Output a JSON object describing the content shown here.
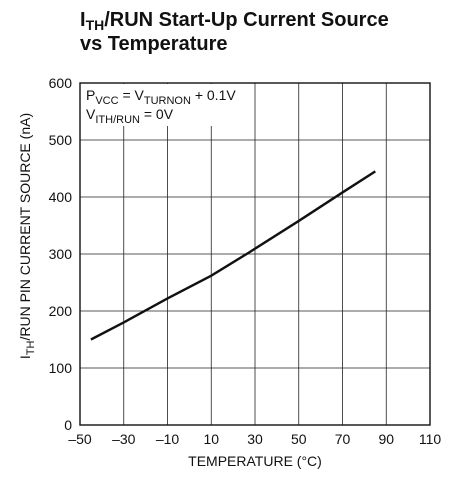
{
  "chart_data": {
    "type": "line",
    "title_lines": [
      [
        {
          "text": "I"
        },
        {
          "text": "TH",
          "sub": true
        },
        {
          "text": "/RUN Start-Up Current Source"
        }
      ],
      [
        {
          "text": "vs Temperature"
        }
      ]
    ],
    "annotation_lines": [
      [
        {
          "text": "P"
        },
        {
          "text": "VCC",
          "sub": true
        },
        {
          "text": " = V"
        },
        {
          "text": "TURNON",
          "sub": true
        },
        {
          "text": " + 0.1V"
        }
      ],
      [
        {
          "text": "V"
        },
        {
          "text": "ITH/RUN",
          "sub": true
        },
        {
          "text": " = 0V"
        }
      ]
    ],
    "x_label": [
      {
        "text": "TEMPERATURE (°C)"
      }
    ],
    "y_label": [
      {
        "text": "I"
      },
      {
        "text": "TH",
        "sub": true
      },
      {
        "text": "/RUN PIN CURRENT SOURCE (nA)"
      }
    ],
    "x": [
      -45,
      -30,
      -10,
      10,
      27,
      50,
      70,
      85
    ],
    "series": [
      {
        "color": "#111111",
        "values": [
          150,
          180,
          222,
          262,
          302,
          358,
          408,
          445
        ]
      }
    ],
    "xlim": [
      -50,
      110
    ],
    "xticks": [
      {
        "value": -50,
        "label": "–50"
      },
      {
        "value": -30,
        "label": "–30"
      },
      {
        "value": -10,
        "label": "–10"
      },
      10,
      30,
      50,
      70,
      90,
      110
    ],
    "ylim": [
      0,
      600
    ],
    "yticks": [
      0,
      100,
      200,
      300,
      400,
      500,
      600
    ],
    "grid": true
  }
}
